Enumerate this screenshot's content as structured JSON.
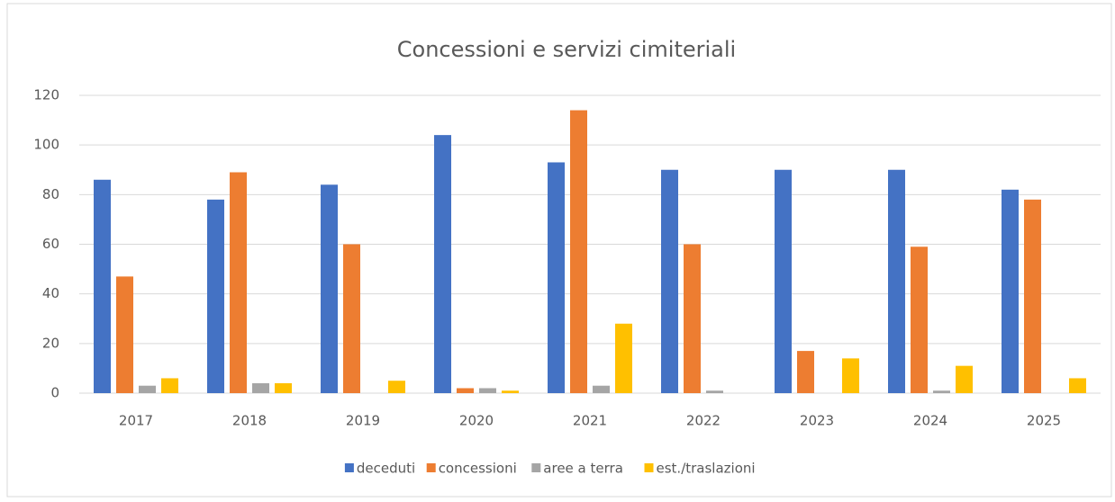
{
  "chart_data": {
    "type": "bar",
    "title": "Concessioni  e servizi cimiteriali",
    "categories": [
      "2017",
      "2018",
      "2019",
      "2020",
      "2021",
      "2022",
      "2023",
      "2024",
      "2025"
    ],
    "series": [
      {
        "name": "deceduti",
        "color": "#4472c4",
        "values": [
          86,
          78,
          84,
          104,
          93,
          90,
          90,
          90,
          82
        ]
      },
      {
        "name": "concessioni",
        "color": "#ed7d31",
        "values": [
          47,
          89,
          60,
          2,
          114,
          60,
          17,
          59,
          78
        ]
      },
      {
        "name": "aree a terra",
        "color": "#a5a5a5",
        "values": [
          3,
          4,
          0,
          2,
          3,
          1,
          0,
          1,
          0
        ]
      },
      {
        "name": "est./traslazioni",
        "color": "#ffc000",
        "values": [
          6,
          4,
          5,
          1,
          28,
          0,
          14,
          11,
          6
        ]
      }
    ],
    "ylim": [
      0,
      120
    ],
    "yticks": [
      0,
      20,
      40,
      60,
      80,
      100,
      120
    ],
    "grid": true,
    "legend": "bottom"
  }
}
